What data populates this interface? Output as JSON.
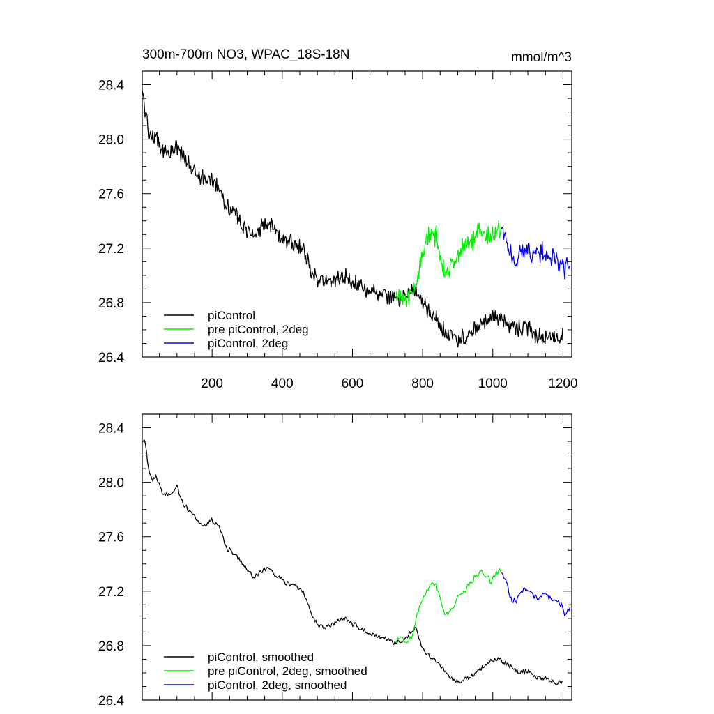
{
  "figure": {
    "title": "300m-700m NO3, WPAC_18S-18N",
    "units": "mmol/m^3"
  },
  "colors": {
    "piControl": "#000000",
    "pre_piControl_2deg": "#00ee00",
    "piControl_2deg": "#0000ee"
  },
  "chart_data": [
    {
      "type": "line",
      "panel": "top",
      "xlim": [
        1,
        1225
      ],
      "ylim": [
        26.4,
        28.5
      ],
      "xticks": [
        200,
        400,
        600,
        800,
        1000,
        1200
      ],
      "xtick_labels": [
        "200",
        "400",
        "600",
        "800",
        "1000",
        "1200"
      ],
      "yticks": [
        26.4,
        26.8,
        27.2,
        27.6,
        28.0,
        28.4
      ],
      "ytick_labels": [
        "26.4",
        "26.8",
        "27.2",
        "27.6",
        "28.0",
        "28.4"
      ],
      "legend_position": "bottom-left",
      "grid": false,
      "series": [
        {
          "name": "piControl",
          "color_key": "piControl",
          "x": [
            1,
            20,
            40,
            60,
            80,
            100,
            120,
            140,
            160,
            180,
            200,
            220,
            240,
            260,
            280,
            300,
            320,
            340,
            360,
            380,
            400,
            420,
            440,
            460,
            480,
            500,
            520,
            540,
            560,
            580,
            600,
            620,
            640,
            660,
            680,
            700,
            720,
            740,
            760,
            780,
            800,
            820,
            840,
            860,
            880,
            900,
            920,
            940,
            960,
            980,
            1000,
            1020,
            1040,
            1060,
            1080,
            1100,
            1120,
            1140,
            1160,
            1180,
            1200
          ],
          "y": [
            28.35,
            28.05,
            28.0,
            27.92,
            27.9,
            27.95,
            27.85,
            27.8,
            27.75,
            27.68,
            27.72,
            27.65,
            27.52,
            27.48,
            27.38,
            27.32,
            27.3,
            27.35,
            27.38,
            27.32,
            27.28,
            27.25,
            27.22,
            27.18,
            27.05,
            26.98,
            26.95,
            26.95,
            26.98,
            27.0,
            26.95,
            26.92,
            26.9,
            26.88,
            26.85,
            26.85,
            26.82,
            26.82,
            26.9,
            26.9,
            26.78,
            26.72,
            26.68,
            26.6,
            26.55,
            26.52,
            26.55,
            26.58,
            26.62,
            26.65,
            26.7,
            26.68,
            26.65,
            26.62,
            26.6,
            26.62,
            26.55,
            26.55,
            26.55,
            26.52,
            26.55
          ],
          "noise": 0.05
        },
        {
          "name": "pre piControl, 2deg",
          "color_key": "pre_piControl_2deg",
          "x": [
            725,
            740,
            760,
            780,
            800,
            820,
            840,
            860,
            880,
            900,
            920,
            940,
            960,
            980,
            1000,
            1020,
            1025
          ],
          "y": [
            26.85,
            26.88,
            26.8,
            26.95,
            27.15,
            27.3,
            27.28,
            27.05,
            27.05,
            27.15,
            27.2,
            27.25,
            27.35,
            27.3,
            27.28,
            27.35,
            27.35
          ],
          "noise": 0.06
        },
        {
          "name": "piControl, 2deg",
          "color_key": "piControl_2deg",
          "x": [
            1025,
            1040,
            1060,
            1080,
            1100,
            1120,
            1140,
            1160,
            1180,
            1200,
            1220
          ],
          "y": [
            27.35,
            27.22,
            27.12,
            27.15,
            27.2,
            27.15,
            27.18,
            27.12,
            27.12,
            27.05,
            27.05
          ],
          "noise": 0.06
        }
      ]
    },
    {
      "type": "line",
      "panel": "bottom",
      "xlim": [
        1,
        1225
      ],
      "ylim": [
        26.4,
        28.5
      ],
      "xticks": [
        200,
        400,
        600,
        800,
        1000,
        1200
      ],
      "xtick_labels": [],
      "yticks": [
        26.4,
        26.8,
        27.2,
        27.6,
        28.0,
        28.4
      ],
      "ytick_labels": [
        "26.4",
        "26.8",
        "27.2",
        "27.6",
        "28.0",
        "28.4"
      ],
      "legend_position": "bottom-left",
      "grid": false,
      "series": [
        {
          "name": "piControl, smoothed",
          "color_key": "piControl",
          "x": [
            1,
            10,
            20,
            30,
            40,
            60,
            80,
            100,
            120,
            140,
            160,
            180,
            200,
            220,
            240,
            260,
            280,
            300,
            320,
            340,
            360,
            380,
            400,
            420,
            440,
            460,
            480,
            500,
            520,
            540,
            560,
            580,
            600,
            620,
            640,
            660,
            680,
            700,
            720,
            740,
            760,
            780,
            800,
            820,
            840,
            860,
            880,
            900,
            920,
            940,
            960,
            980,
            1000,
            1020,
            1040,
            1060,
            1080,
            1100,
            1120,
            1140,
            1160,
            1180,
            1200
          ],
          "y": [
            28.32,
            28.28,
            28.08,
            28.02,
            28.05,
            27.92,
            27.9,
            27.97,
            27.83,
            27.78,
            27.72,
            27.68,
            27.72,
            27.68,
            27.52,
            27.48,
            27.42,
            27.36,
            27.3,
            27.34,
            27.37,
            27.33,
            27.28,
            27.25,
            27.23,
            27.2,
            27.05,
            26.95,
            26.93,
            26.95,
            26.98,
            27.0,
            26.96,
            26.93,
            26.9,
            26.88,
            26.86,
            26.84,
            26.82,
            26.82,
            26.88,
            26.93,
            26.78,
            26.72,
            26.68,
            26.62,
            26.56,
            26.53,
            26.55,
            26.58,
            26.62,
            26.66,
            26.7,
            26.7,
            26.66,
            26.63,
            26.6,
            26.62,
            26.57,
            26.56,
            26.55,
            26.52,
            26.53
          ],
          "noise": 0.015
        },
        {
          "name": "pre piControl, 2deg, smoothed",
          "color_key": "pre_piControl_2deg",
          "x": [
            725,
            740,
            755,
            770,
            785,
            800,
            815,
            830,
            845,
            860,
            875,
            890,
            905,
            920,
            935,
            950,
            965,
            980,
            995,
            1010,
            1025
          ],
          "y": [
            26.84,
            26.86,
            26.8,
            26.88,
            27.05,
            27.15,
            27.22,
            27.28,
            27.2,
            27.05,
            27.04,
            27.1,
            27.18,
            27.2,
            27.25,
            27.3,
            27.35,
            27.32,
            27.28,
            27.33,
            27.35
          ],
          "noise": 0.02
        },
        {
          "name": "piControl, 2deg, smoothed",
          "color_key": "piControl_2deg",
          "x": [
            1025,
            1040,
            1055,
            1070,
            1085,
            1100,
            1115,
            1130,
            1145,
            1160,
            1175,
            1190,
            1205,
            1220
          ],
          "y": [
            27.35,
            27.26,
            27.12,
            27.14,
            27.2,
            27.22,
            27.16,
            27.16,
            27.18,
            27.15,
            27.13,
            27.12,
            27.03,
            27.07
          ],
          "noise": 0.02
        }
      ]
    }
  ]
}
